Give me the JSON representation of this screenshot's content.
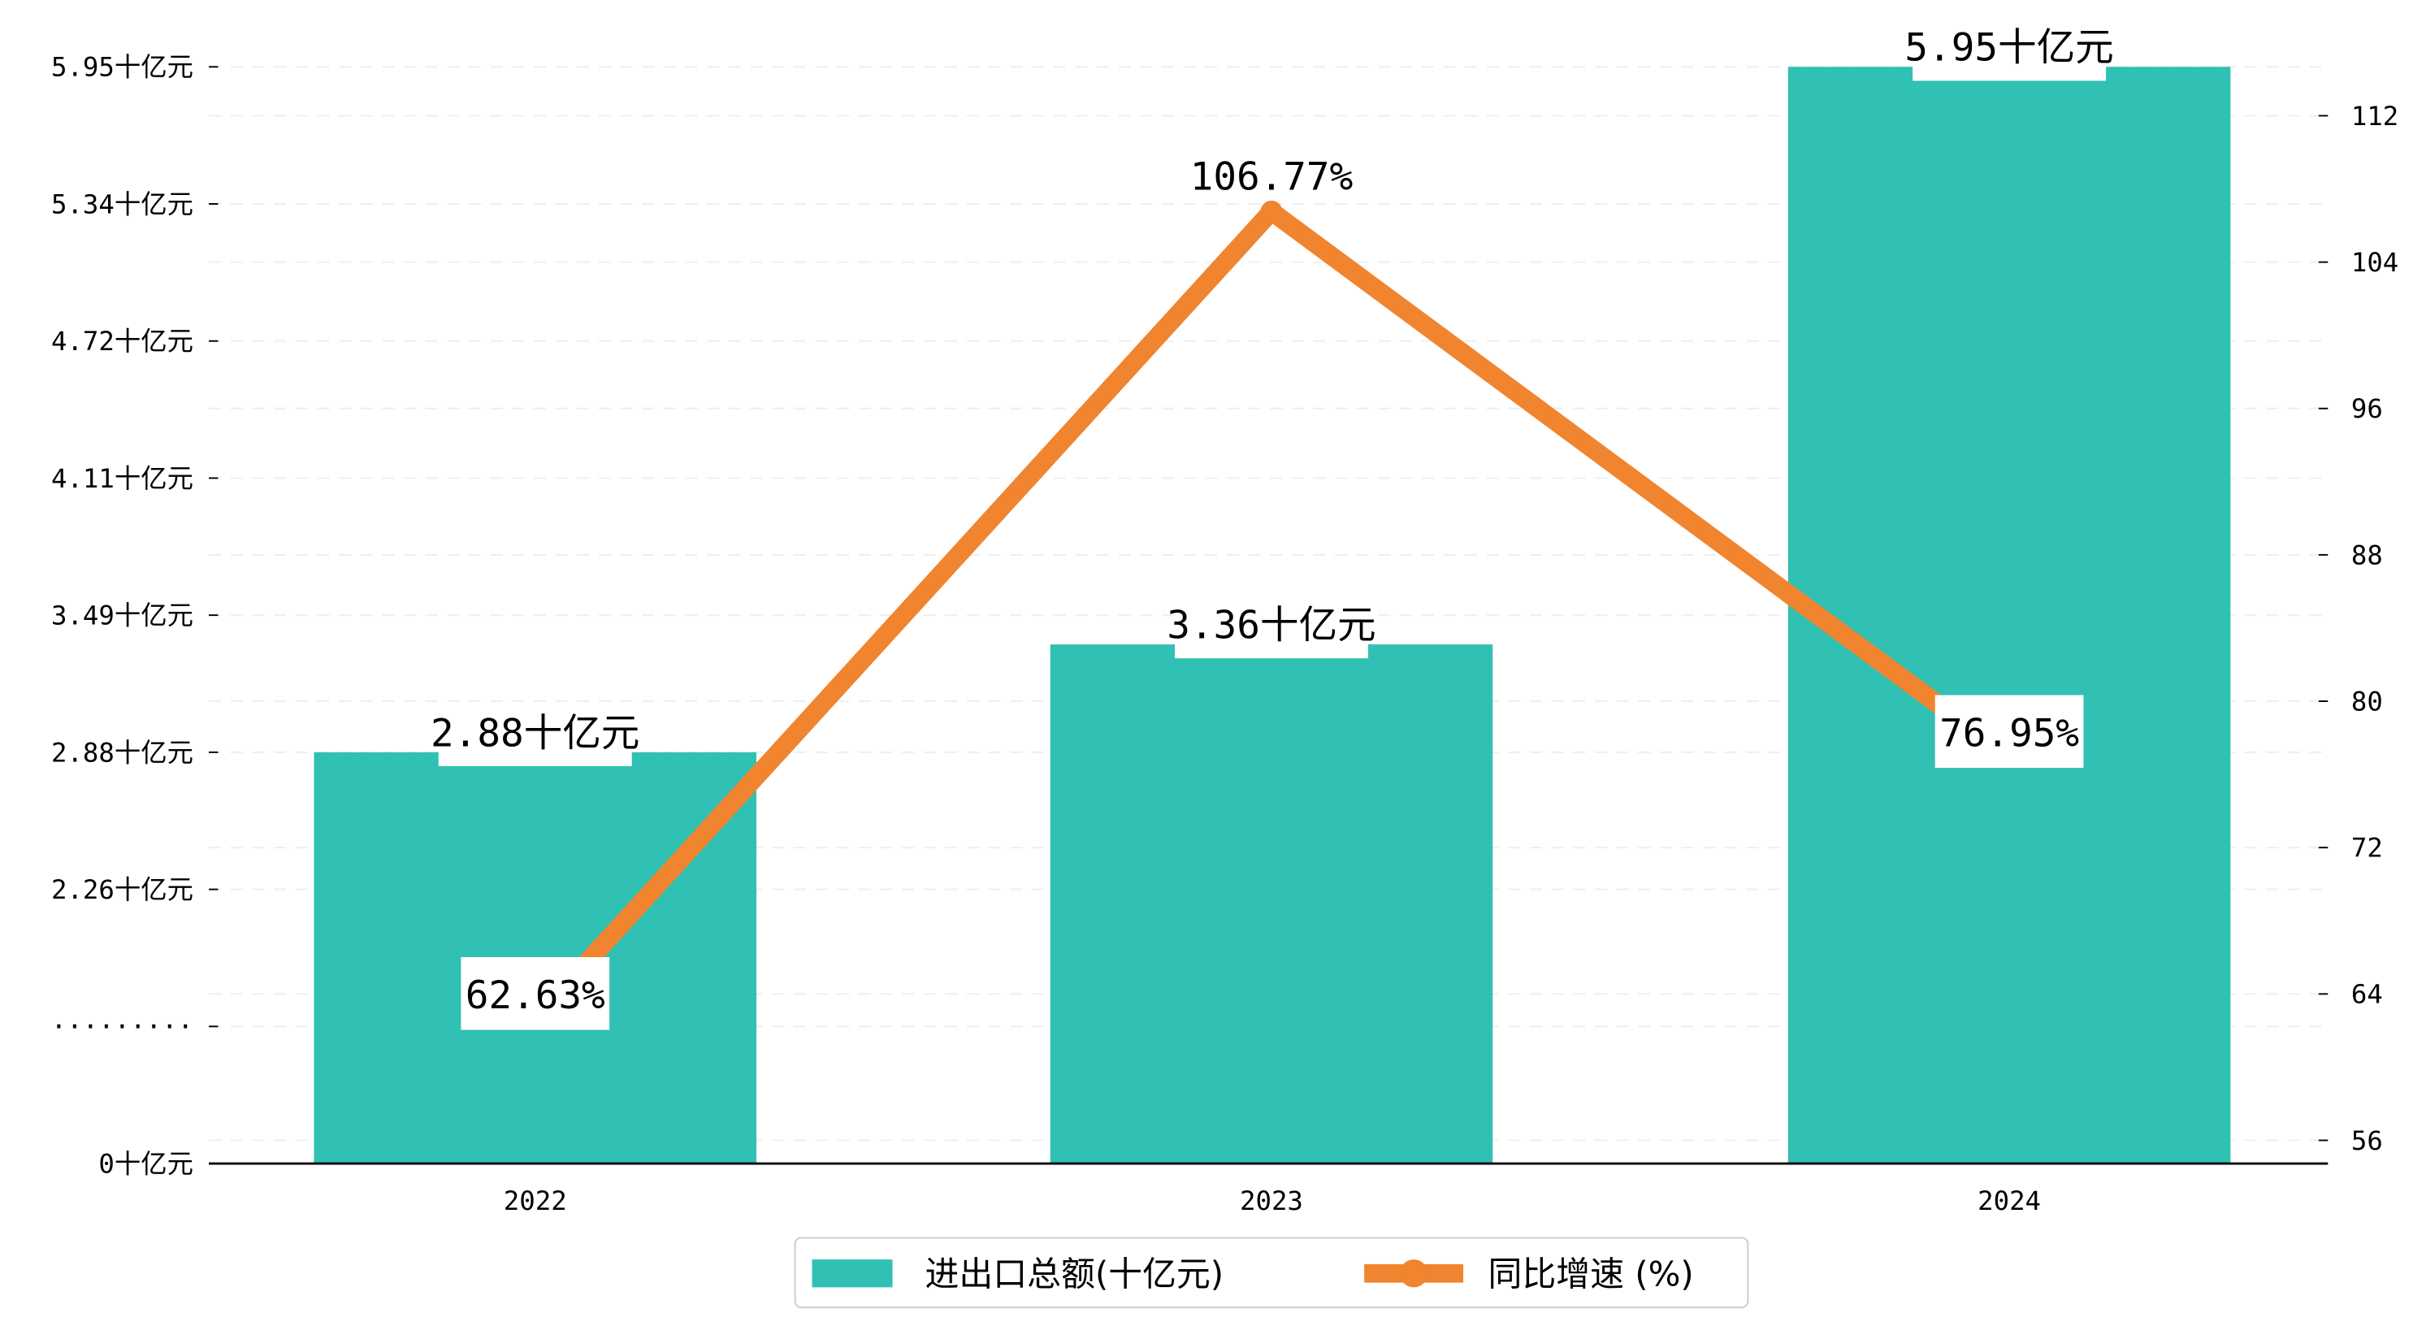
{
  "chart_data": {
    "type": "bar+line",
    "categories": [
      "2022",
      "2023",
      "2024"
    ],
    "series": [
      {
        "name": "进出口总额(十亿元)",
        "type": "bar",
        "axis": "left",
        "values": [
          2.88,
          3.36,
          5.95
        ],
        "labels": [
          "2.88十亿元",
          "3.36十亿元",
          "5.95十亿元"
        ],
        "color": "#31c0b4"
      },
      {
        "name": "同比增速 (%)",
        "type": "line",
        "axis": "right",
        "values": [
          62.63,
          106.77,
          76.95
        ],
        "labels": [
          "62.63%",
          "106.77%",
          "76.95%"
        ],
        "color": "#f0842f"
      }
    ],
    "left_axis": {
      "ticks": [
        0,
        null,
        2.26,
        2.88,
        3.49,
        4.11,
        4.72,
        5.34,
        5.95
      ],
      "tick_labels": [
        "0十亿元",
        "·········",
        "2.26十亿元",
        "2.88十亿元",
        "3.49十亿元",
        "4.11十亿元",
        "4.72十亿元",
        "5.34十亿元",
        "5.95十亿元"
      ]
    },
    "right_axis": {
      "ticks": [
        56,
        64,
        72,
        80,
        88,
        96,
        104,
        112
      ],
      "tick_labels": [
        "56",
        "64",
        "72",
        "80",
        "88",
        "96",
        "104",
        "112"
      ]
    },
    "grid": true,
    "legend_position": "bottom-center",
    "legend": [
      "进出口总额(十亿元)",
      "同比增速 (%)"
    ]
  }
}
